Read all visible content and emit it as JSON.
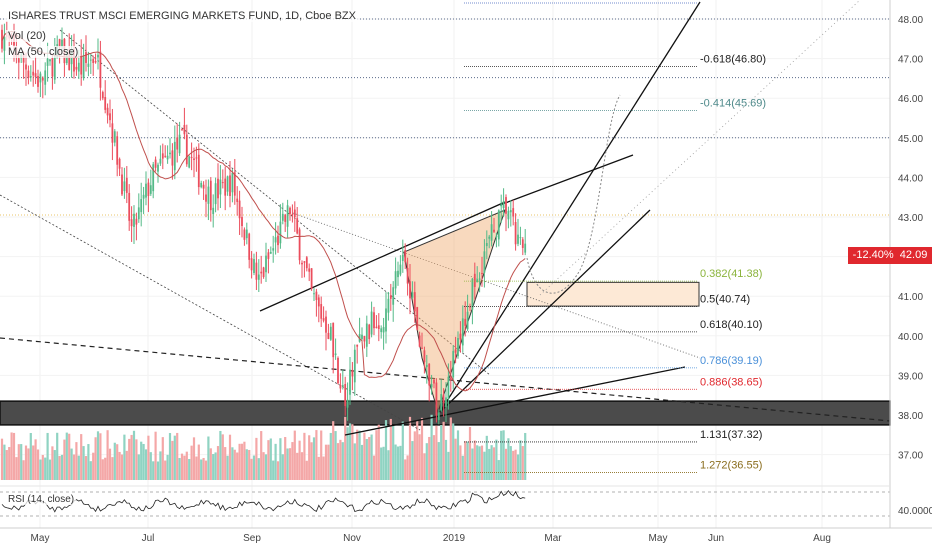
{
  "header": {
    "title": "ISHARES TRUST MSCI EMERGING MARKETS FUND, 1D, Cboe BZX",
    "vol_label": "Vol (20)",
    "ma_label": "MA (50, close)",
    "rsi_label": "RSI (14, close)"
  },
  "price_tag": {
    "change": "-12.40%",
    "price": "42.09"
  },
  "colors": {
    "up": "#53b987",
    "down": "#eb4d5c",
    "ma": "#c0504d",
    "zone": "#fde9d6",
    "support": "#333333",
    "price_tag": "#e0282e"
  },
  "chart_data": {
    "type": "candlestick",
    "title": "ISHARES TRUST MSCI EMERGING MARKETS FUND, 1D, Cboe BZX",
    "y_axis": {
      "ticks": [
        "48.00",
        "47.00",
        "46.00",
        "45.00",
        "44.00",
        "43.00",
        "42.00",
        "41.00",
        "40.00",
        "39.00",
        "38.00",
        "37.00"
      ],
      "range": [
        36.3,
        48.4
      ]
    },
    "x_axis": {
      "ticks": [
        "May",
        "Jul",
        "Sep",
        "Nov",
        "2019",
        "Mar",
        "May",
        "Jun",
        "Aug"
      ]
    },
    "last_price": 42.09,
    "fib_levels": [
      {
        "label": "-0.618(46.80)",
        "value": 46.8,
        "color": "#222222"
      },
      {
        "label": "-0.414(45.69)",
        "value": 45.69,
        "color": "#4f8a8b"
      },
      {
        "label": "0.382(41.38)",
        "value": 41.38,
        "color": "#8bb43c"
      },
      {
        "label": "0.5(40.74)",
        "value": 40.74,
        "color": "#222222"
      },
      {
        "label": "0.618(40.10)",
        "value": 40.1,
        "color": "#222222"
      },
      {
        "label": "0.786(39.19)",
        "value": 39.19,
        "color": "#4a90d9"
      },
      {
        "label": "0.886(38.65)",
        "value": 38.65,
        "color": "#e0282e"
      },
      {
        "label": "1.131(37.32)",
        "value": 37.32,
        "color": "#222222"
      },
      {
        "label": "1.272(36.55)",
        "value": 36.55,
        "color": "#8a6d1e"
      }
    ],
    "horizontal_levels": [
      48.0,
      46.52,
      45.0,
      43.05
    ],
    "support_zone": [
      37.75,
      38.35
    ],
    "target_zone": [
      40.75,
      41.35
    ],
    "rsi": {
      "ticks": [
        "40.0000"
      ]
    }
  }
}
